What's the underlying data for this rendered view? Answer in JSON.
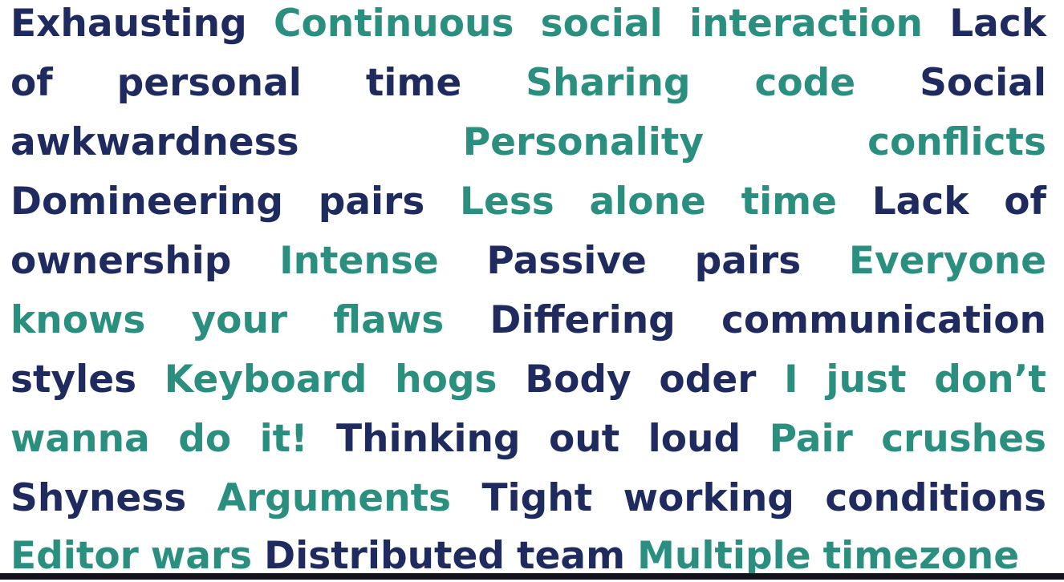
{
  "colors": {
    "dark": "#1f2a5e",
    "teal": "#2a8f7e",
    "background": "#ffffff"
  },
  "lines": [
    {
      "words": [
        {
          "text": "Exhausting",
          "tone": "dark"
        },
        {
          "text": "Continuous",
          "tone": "teal"
        },
        {
          "text": "social",
          "tone": "teal"
        },
        {
          "text": "interaction",
          "tone": "teal"
        },
        {
          "text": "Lack",
          "tone": "dark"
        }
      ]
    },
    {
      "words": [
        {
          "text": "of",
          "tone": "dark"
        },
        {
          "text": "personal",
          "tone": "dark"
        },
        {
          "text": "time",
          "tone": "dark"
        },
        {
          "text": "Sharing",
          "tone": "teal"
        },
        {
          "text": "code",
          "tone": "teal"
        },
        {
          "text": "Social",
          "tone": "dark"
        }
      ]
    },
    {
      "words": [
        {
          "text": "awkwardness",
          "tone": "dark"
        },
        {
          "text": "Personality",
          "tone": "teal"
        },
        {
          "text": "conflicts",
          "tone": "teal"
        }
      ]
    },
    {
      "words": [
        {
          "text": "Domineering",
          "tone": "dark"
        },
        {
          "text": "pairs",
          "tone": "dark"
        },
        {
          "text": "Less",
          "tone": "teal"
        },
        {
          "text": "alone",
          "tone": "teal"
        },
        {
          "text": "time",
          "tone": "teal"
        },
        {
          "text": "Lack",
          "tone": "dark"
        },
        {
          "text": "of",
          "tone": "dark"
        }
      ]
    },
    {
      "words": [
        {
          "text": "ownership",
          "tone": "dark"
        },
        {
          "text": "Intense",
          "tone": "teal"
        },
        {
          "text": "Passive",
          "tone": "dark"
        },
        {
          "text": "pairs",
          "tone": "dark"
        },
        {
          "text": "Everyone",
          "tone": "teal"
        }
      ]
    },
    {
      "words": [
        {
          "text": "knows",
          "tone": "teal"
        },
        {
          "text": "your",
          "tone": "teal"
        },
        {
          "text": "flaws",
          "tone": "teal"
        },
        {
          "text": "Differing",
          "tone": "dark"
        },
        {
          "text": "communication",
          "tone": "dark"
        }
      ]
    },
    {
      "words": [
        {
          "text": "styles",
          "tone": "dark"
        },
        {
          "text": "Keyboard",
          "tone": "teal"
        },
        {
          "text": "hogs",
          "tone": "teal"
        },
        {
          "text": "Body",
          "tone": "dark"
        },
        {
          "text": "oder",
          "tone": "dark"
        },
        {
          "text": "I",
          "tone": "teal"
        },
        {
          "text": "just",
          "tone": "teal"
        },
        {
          "text": "don’t",
          "tone": "teal"
        }
      ]
    },
    {
      "words": [
        {
          "text": "wanna",
          "tone": "teal"
        },
        {
          "text": "do",
          "tone": "teal"
        },
        {
          "text": "it!",
          "tone": "teal"
        },
        {
          "text": "Thinking",
          "tone": "dark"
        },
        {
          "text": "out",
          "tone": "dark"
        },
        {
          "text": "loud",
          "tone": "dark"
        },
        {
          "text": "Pair",
          "tone": "teal"
        },
        {
          "text": "crushes",
          "tone": "teal"
        }
      ]
    },
    {
      "words": [
        {
          "text": "Shyness",
          "tone": "dark"
        },
        {
          "text": "Arguments",
          "tone": "teal"
        },
        {
          "text": "Tight",
          "tone": "dark"
        },
        {
          "text": "working",
          "tone": "dark"
        },
        {
          "text": "conditions",
          "tone": "dark"
        }
      ]
    },
    {
      "words": [
        {
          "text": "Editor",
          "tone": "teal"
        },
        {
          "text": "wars",
          "tone": "teal"
        },
        {
          "text": "Distributed",
          "tone": "dark"
        },
        {
          "text": "team",
          "tone": "dark"
        },
        {
          "text": "Multiple",
          "tone": "teal"
        },
        {
          "text": "timezone",
          "tone": "teal"
        }
      ],
      "align": "left"
    }
  ]
}
